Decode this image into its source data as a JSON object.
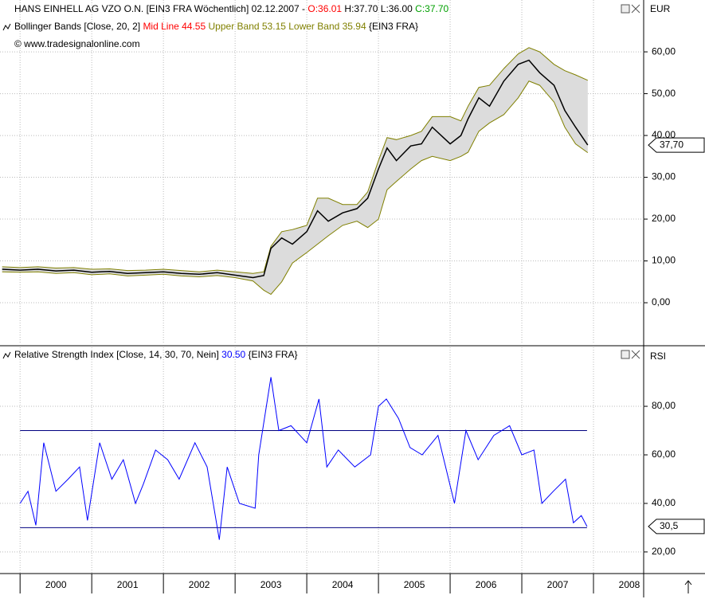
{
  "chart_data": [
    {
      "type": "line",
      "header": [
        [
          {
            "text": "HANS EINHELL AG VZO O.N. [EIN3 FRA  Wöchentlich] 02.12.2007 - ",
            "color": "#000000"
          },
          {
            "text": "O:36.01",
            "color": "#ff0000"
          },
          {
            "text": " H:37.70 L:36.00 ",
            "color": "#000000"
          },
          {
            "text": "C:37.70",
            "color": "#00a000"
          }
        ],
        [
          {
            "text": "Bollinger Bands [Close, 20, 2] ",
            "color": "#000000"
          },
          {
            "text": "Mid Line 44.55",
            "color": "#ff0000"
          },
          {
            "text": " Upper Band 53.15 Lower Band 35.94",
            "color": "#808000"
          },
          {
            "text": " {EIN3 FRA}",
            "color": "#000000"
          }
        ],
        [
          {
            "text": "© www.tradesignalonline.com",
            "color": "#000000"
          }
        ]
      ],
      "axis_label": "EUR",
      "last_value": {
        "value": 37.7,
        "label": "37,70"
      },
      "band_fill": "#dcdcdc",
      "x": [
        1999.75,
        2000.0,
        2000.25,
        2000.5,
        2000.75,
        2001.0,
        2001.25,
        2001.5,
        2001.75,
        2002.0,
        2002.25,
        2002.5,
        2002.75,
        2003.0,
        2003.25,
        2003.4,
        2003.5,
        2003.65,
        2003.8,
        2004.0,
        2004.15,
        2004.3,
        2004.5,
        2004.7,
        2004.85,
        2005.0,
        2005.12,
        2005.25,
        2005.45,
        2005.6,
        2005.75,
        2006.0,
        2006.15,
        2006.25,
        2006.4,
        2006.55,
        2006.75,
        2006.95,
        2007.1,
        2007.25,
        2007.45,
        2007.6,
        2007.75,
        2007.92
      ],
      "series": [
        {
          "name": "Upper Band",
          "color": "#808000",
          "values": [
            8.6,
            8.4,
            8.6,
            8.3,
            8.4,
            8.0,
            8.1,
            7.7,
            7.8,
            8.0,
            7.7,
            7.4,
            7.8,
            7.4,
            7.0,
            7.4,
            13.5,
            17.0,
            17.5,
            18.5,
            25.0,
            25.0,
            23.5,
            23.5,
            26.5,
            34.0,
            39.5,
            39.0,
            40.0,
            41.0,
            44.5,
            44.5,
            43.5,
            47.0,
            51.5,
            52.0,
            56.0,
            59.5,
            61.0,
            60.0,
            57.0,
            55.5,
            54.5,
            53.2
          ]
        },
        {
          "name": "Lower Band",
          "color": "#808000",
          "values": [
            7.4,
            7.3,
            7.4,
            7.0,
            7.2,
            6.7,
            6.9,
            6.4,
            6.6,
            6.8,
            6.4,
            6.2,
            6.5,
            6.0,
            5.2,
            3.0,
            2.0,
            5.0,
            9.5,
            12.0,
            14.0,
            16.0,
            18.5,
            19.5,
            18.0,
            20.0,
            27.0,
            29.0,
            32.0,
            34.0,
            35.0,
            34.0,
            35.0,
            36.0,
            41.0,
            43.0,
            45.0,
            49.0,
            53.0,
            52.0,
            48.0,
            42.0,
            38.0,
            35.9
          ]
        },
        {
          "name": "Close",
          "color": "#000000",
          "values": [
            8.0,
            7.8,
            8.0,
            7.6,
            7.8,
            7.3,
            7.5,
            7.0,
            7.2,
            7.4,
            7.0,
            6.8,
            7.2,
            6.6,
            6.0,
            6.5,
            13.0,
            15.5,
            14.0,
            17.0,
            22.0,
            19.5,
            21.5,
            22.5,
            25.0,
            32.0,
            37.0,
            34.0,
            37.5,
            38.0,
            42.0,
            38.0,
            40.0,
            44.0,
            49.0,
            47.0,
            53.0,
            57.0,
            58.0,
            55.0,
            52.0,
            46.0,
            42.0,
            37.7
          ]
        }
      ],
      "xlim": [
        1999.72,
        2008.7
      ],
      "xticks": [
        2000,
        2001,
        2002,
        2003,
        2004,
        2005,
        2006,
        2007,
        2008
      ],
      "ylim": [
        -9.9,
        72.4
      ],
      "yticks": [
        {
          "value": 0,
          "label": "0,00"
        },
        {
          "value": 10,
          "label": "10,00"
        },
        {
          "value": 20,
          "label": "20,00"
        },
        {
          "value": 30,
          "label": "30,00"
        },
        {
          "value": 40,
          "label": "40,00"
        },
        {
          "value": 50,
          "label": "50,00"
        },
        {
          "value": 60,
          "label": "60,00"
        }
      ],
      "grid": true
    },
    {
      "type": "line",
      "header": [
        [
          {
            "text": "Relative Strength Index [Close, 14, 30, 70, Nein] ",
            "color": "#000000"
          },
          {
            "text": "30.50",
            "color": "#0000ff"
          },
          {
            "text": " {EIN3 FRA}",
            "color": "#000000"
          }
        ]
      ],
      "axis_label": "RSI",
      "last_value": {
        "value": 30.5,
        "label": "30,5"
      },
      "levels": [
        30,
        70
      ],
      "level_color": "#000080",
      "x": [
        2000.0,
        2000.11,
        2000.22,
        2000.33,
        2000.5,
        2000.67,
        2000.83,
        2000.94,
        2001.11,
        2001.28,
        2001.44,
        2001.61,
        2001.72,
        2001.89,
        2002.06,
        2002.22,
        2002.44,
        2002.61,
        2002.78,
        2002.89,
        2003.06,
        2003.28,
        2003.33,
        2003.5,
        2003.61,
        2003.78,
        2004.0,
        2004.17,
        2004.28,
        2004.44,
        2004.67,
        2004.89,
        2005.0,
        2005.11,
        2005.28,
        2005.44,
        2005.61,
        2005.83,
        2006.06,
        2006.22,
        2006.39,
        2006.61,
        2006.83,
        2007.0,
        2007.17,
        2007.28,
        2007.44,
        2007.61,
        2007.72,
        2007.83,
        2007.91
      ],
      "series": [
        {
          "name": "RSI",
          "color": "#0000ff",
          "values": [
            40,
            45,
            31,
            65,
            45,
            50,
            55,
            33,
            65,
            50,
            58,
            40,
            48,
            62,
            58,
            50,
            65,
            55,
            25,
            55,
            40,
            38,
            60,
            92,
            70,
            72,
            65,
            83,
            55,
            62,
            55,
            60,
            80,
            83,
            75,
            63,
            60,
            68,
            40,
            70,
            58,
            68,
            72,
            60,
            62,
            40,
            45,
            50,
            32,
            35,
            30.5
          ]
        }
      ],
      "xlim": [
        1999.72,
        2008.7
      ],
      "xticks": [
        2000,
        2001,
        2002,
        2003,
        2004,
        2005,
        2006,
        2007,
        2008
      ],
      "ylim": [
        11.1,
        104.3
      ],
      "yticks": [
        {
          "value": 20,
          "label": "20,00"
        },
        {
          "value": 40,
          "label": "40,00"
        },
        {
          "value": 60,
          "label": "60,00"
        },
        {
          "value": 80,
          "label": "80,00"
        }
      ],
      "grid": true
    }
  ]
}
